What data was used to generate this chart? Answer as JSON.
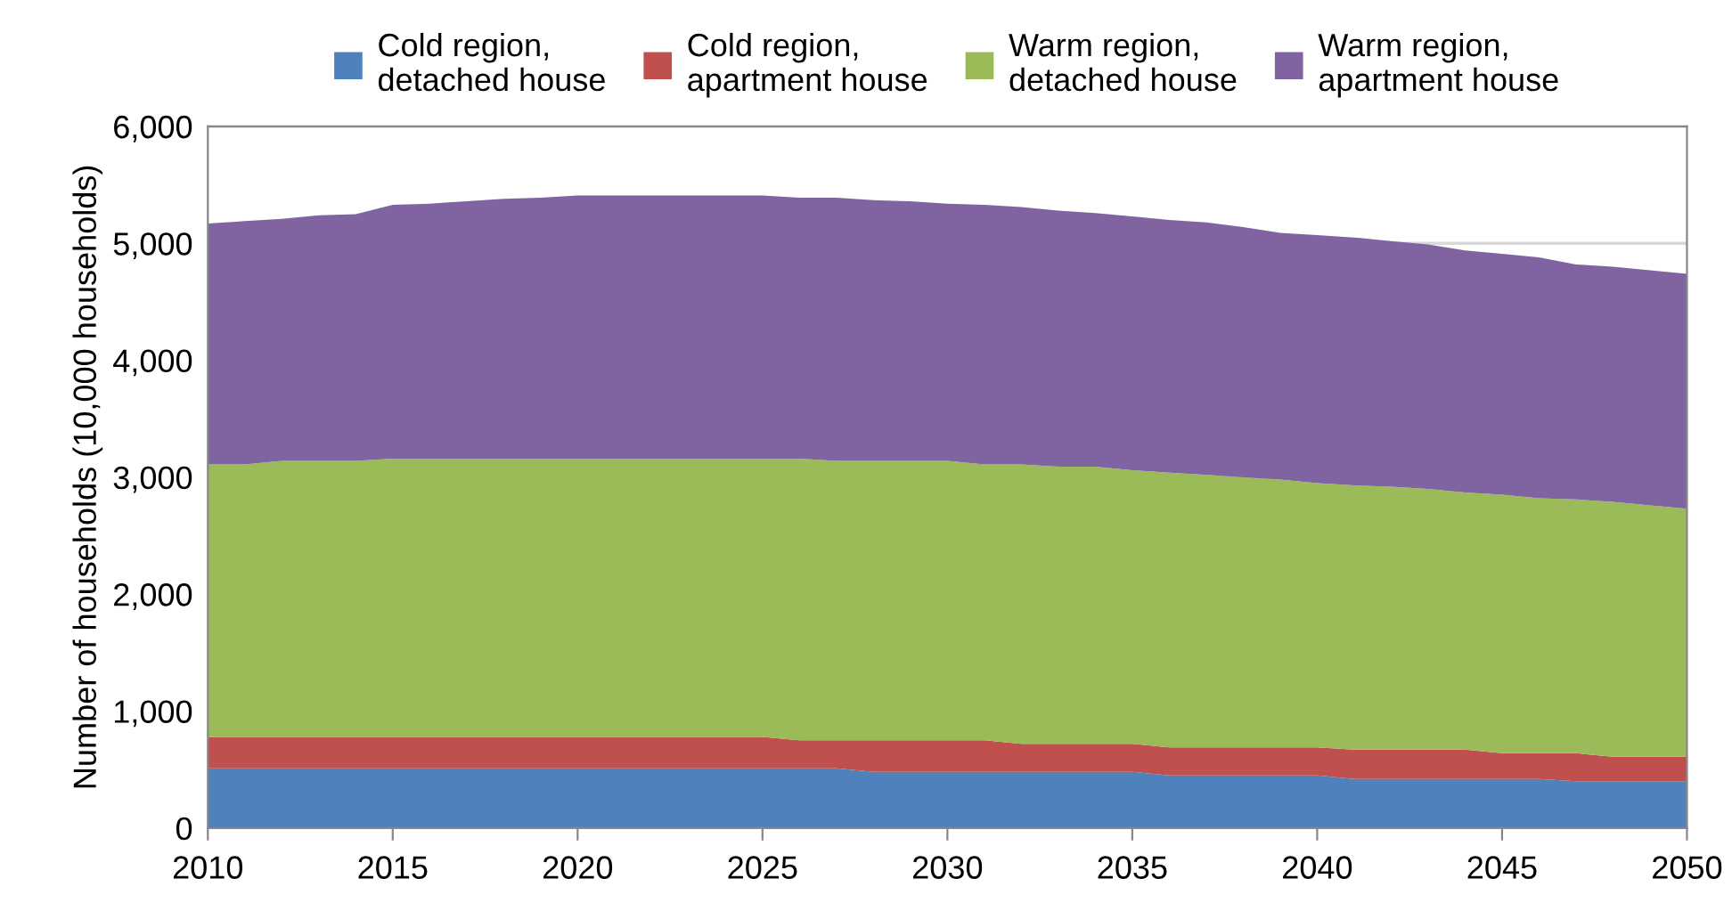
{
  "chart_data": {
    "type": "area",
    "stacked": true,
    "ylabel": "Number of households (10,000 households)",
    "x": [
      2010,
      2011,
      2012,
      2013,
      2014,
      2015,
      2016,
      2017,
      2018,
      2019,
      2020,
      2021,
      2022,
      2023,
      2024,
      2025,
      2026,
      2027,
      2028,
      2029,
      2030,
      2031,
      2032,
      2033,
      2034,
      2035,
      2036,
      2037,
      2038,
      2039,
      2040,
      2041,
      2042,
      2043,
      2044,
      2045,
      2046,
      2047,
      2048,
      2049,
      2050
    ],
    "series": [
      {
        "name": "Cold region,\ndetached house",
        "color": "#4f81bd",
        "values": [
          510,
          510,
          510,
          510,
          510,
          510,
          510,
          510,
          510,
          510,
          510,
          510,
          510,
          510,
          510,
          510,
          510,
          510,
          480,
          480,
          480,
          480,
          480,
          480,
          480,
          480,
          450,
          450,
          450,
          450,
          450,
          420,
          420,
          420,
          420,
          420,
          420,
          400,
          400,
          400,
          400
        ]
      },
      {
        "name": "Cold region,\napartment house",
        "color": "#c0504d",
        "values": [
          270,
          270,
          270,
          270,
          270,
          270,
          270,
          270,
          270,
          270,
          270,
          270,
          270,
          270,
          270,
          270,
          240,
          240,
          270,
          270,
          270,
          270,
          240,
          240,
          240,
          240,
          240,
          240,
          240,
          240,
          240,
          250,
          250,
          250,
          250,
          220,
          220,
          240,
          210,
          210,
          210
        ]
      },
      {
        "name": "Warm region,\ndetached house",
        "color": "#9bbb59",
        "values": [
          2330,
          2330,
          2360,
          2360,
          2360,
          2380,
          2380,
          2380,
          2380,
          2380,
          2380,
          2380,
          2380,
          2380,
          2380,
          2380,
          2410,
          2390,
          2390,
          2390,
          2390,
          2360,
          2390,
          2370,
          2370,
          2340,
          2350,
          2330,
          2310,
          2290,
          2260,
          2260,
          2250,
          2230,
          2200,
          2210,
          2180,
          2170,
          2180,
          2150,
          2120
        ]
      },
      {
        "name": "Warm region,\napartment house",
        "color": "#8064a2",
        "values": [
          2060,
          2080,
          2070,
          2100,
          2110,
          2170,
          2180,
          2200,
          2220,
          2230,
          2250,
          2250,
          2250,
          2250,
          2250,
          2250,
          2230,
          2250,
          2230,
          2220,
          2200,
          2220,
          2200,
          2190,
          2170,
          2170,
          2160,
          2160,
          2140,
          2110,
          2120,
          2120,
          2100,
          2090,
          2070,
          2060,
          2060,
          2010,
          2010,
          2010,
          2010
        ]
      }
    ],
    "xlim": [
      2010,
      2050
    ],
    "xticks": [
      2010,
      2015,
      2020,
      2025,
      2030,
      2035,
      2040,
      2045,
      2050
    ],
    "ylim": [
      0,
      6000
    ],
    "yticks": [
      0,
      {
        "value": 1000,
        "label": "1,000"
      },
      {
        "value": 2000,
        "label": "2,000"
      },
      {
        "value": 3000,
        "label": "3,000"
      },
      {
        "value": 4000,
        "label": "4,000"
      },
      {
        "value": 5000,
        "label": "5,000"
      },
      {
        "value": 6000,
        "label": "6,000"
      }
    ],
    "grid": "y",
    "legend": "top"
  }
}
